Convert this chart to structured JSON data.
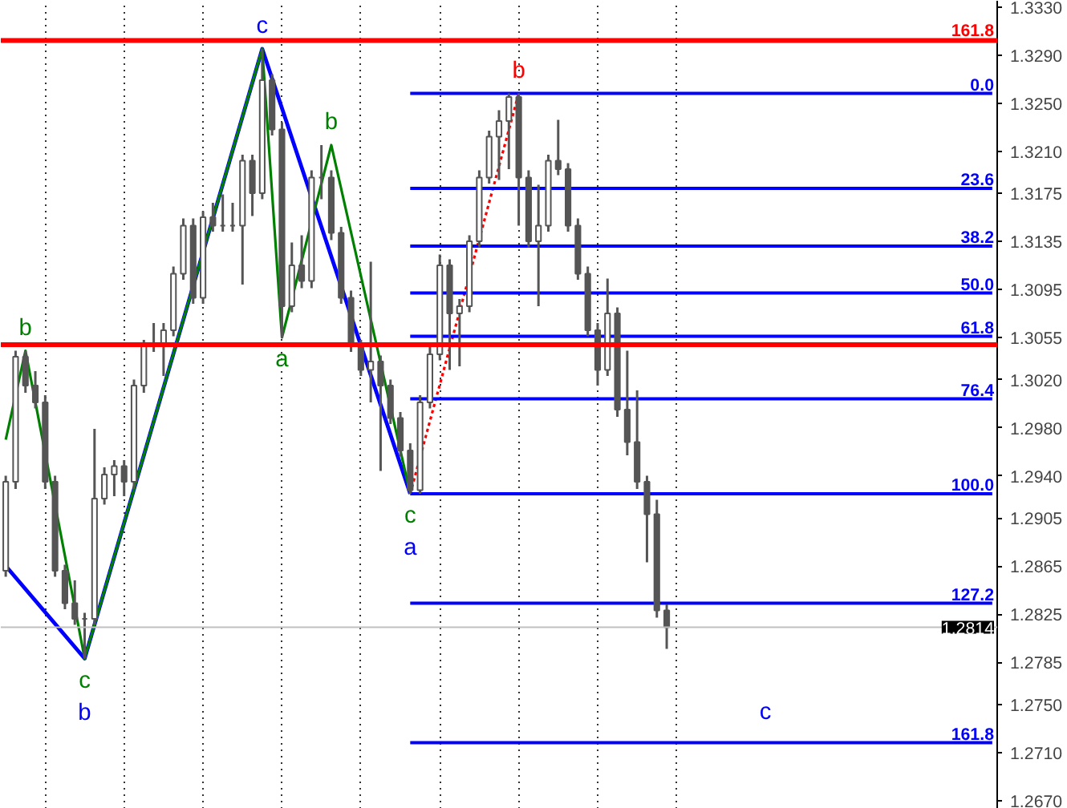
{
  "chart_data": {
    "type": "candlestick",
    "color": "#555555",
    "categories": [
      null,
      null,
      null,
      null,
      null,
      null,
      null,
      null,
      null,
      null,
      null,
      null,
      null,
      null,
      null,
      null,
      null,
      null,
      null,
      null,
      null,
      null,
      null,
      null,
      null,
      null,
      null,
      null,
      null,
      null,
      null,
      null,
      null,
      null,
      null,
      null,
      null,
      null,
      null,
      null,
      null,
      null,
      null,
      null,
      null,
      null,
      null,
      null,
      null,
      null,
      null,
      null,
      null,
      null,
      null,
      null,
      null,
      null,
      null,
      null,
      null,
      null,
      null,
      null,
      null,
      null,
      null,
      null,
      null,
      null,
      null,
      null,
      null,
      null,
      null,
      null,
      null,
      null,
      null,
      null,
      null,
      null,
      null,
      null,
      null,
      null,
      null,
      null,
      null,
      null,
      null,
      null,
      null,
      null,
      null,
      null,
      null,
      null,
      null,
      null,
      null
    ],
    "ohlc": [
      [
        1.2861,
        1.294,
        1.2856,
        1.2935
      ],
      [
        1.2935,
        1.3044,
        1.2929,
        1.3039
      ],
      [
        1.3039,
        1.3044,
        1.3009,
        1.3015
      ],
      [
        1.3015,
        1.3027,
        1.2996,
        1.3001
      ],
      [
        1.3001,
        1.3007,
        1.2929,
        1.2935
      ],
      [
        1.2935,
        1.294,
        1.2856,
        1.2861
      ],
      [
        1.2861,
        1.2866,
        1.2829,
        1.2834
      ],
      [
        1.2834,
        1.2853,
        1.2816,
        1.2821
      ],
      [
        1.2821,
        1.2826,
        1.2788,
        1.2821
      ],
      [
        1.2821,
        1.2979,
        1.2816,
        1.2921
      ],
      [
        1.2921,
        1.2947,
        1.2916,
        1.2941
      ],
      [
        1.2941,
        1.2953,
        1.2923,
        1.2948
      ],
      [
        1.2948,
        1.2953,
        1.2923,
        1.2935
      ],
      [
        1.2935,
        1.302,
        1.2929,
        1.3015
      ],
      [
        1.3015,
        1.3053,
        1.3009,
        1.3048
      ],
      [
        1.3048,
        1.3067,
        1.3043,
        1.3048
      ],
      [
        1.3048,
        1.3067,
        1.3023,
        1.3061
      ],
      [
        1.3061,
        1.3114,
        1.3056,
        1.3108
      ],
      [
        1.3108,
        1.3154,
        1.3103,
        1.3148
      ],
      [
        1.3148,
        1.3154,
        1.3083,
        1.3088
      ],
      [
        1.3088,
        1.316,
        1.3083,
        1.3155
      ],
      [
        1.3155,
        1.3167,
        1.3143,
        1.3148
      ],
      [
        1.3148,
        1.3174,
        1.3143,
        1.3148
      ],
      [
        1.3148,
        1.3167,
        1.3143,
        1.3148
      ],
      [
        1.3148,
        1.3207,
        1.3099,
        1.3202
      ],
      [
        1.3202,
        1.3207,
        1.3156,
        1.3175
      ],
      [
        1.3175,
        1.3295,
        1.317,
        1.3269
      ],
      [
        1.3269,
        1.3274,
        1.3223,
        1.3228
      ],
      [
        1.3228,
        1.3234,
        1.3055,
        1.3081
      ],
      [
        1.3081,
        1.3134,
        1.3076,
        1.3115
      ],
      [
        1.3115,
        1.314,
        1.3096,
        1.3102
      ],
      [
        1.3102,
        1.3194,
        1.3096,
        1.3188
      ],
      [
        1.3188,
        1.3215,
        1.317,
        1.3188
      ],
      [
        1.3188,
        1.3194,
        1.3136,
        1.3142
      ],
      [
        1.3142,
        1.3147,
        1.3083,
        1.3088
      ],
      [
        1.3088,
        1.3094,
        1.3043,
        1.3048
      ],
      [
        1.3048,
        1.3053,
        1.3023,
        1.3028
      ],
      [
        1.3028,
        1.3118,
        1.3001,
        1.3035
      ],
      [
        1.3035,
        1.304,
        1.2944,
        1.3015
      ],
      [
        1.3015,
        1.302,
        1.2983,
        1.2988
      ],
      [
        1.2988,
        1.2993,
        1.2956,
        1.2961
      ],
      [
        1.2961,
        1.2967,
        1.2925,
        1.2928
      ],
      [
        1.2928,
        1.3007,
        1.2925,
        1.3001
      ],
      [
        1.3001,
        1.3047,
        1.2996,
        1.3041
      ],
      [
        1.3041,
        1.3124,
        1.3036,
        1.3115
      ],
      [
        1.3115,
        1.312,
        1.3028,
        1.3075
      ],
      [
        1.3075,
        1.3087,
        1.3031,
        1.3081
      ],
      [
        1.3081,
        1.314,
        1.3076,
        1.3135
      ],
      [
        1.3135,
        1.3194,
        1.313,
        1.3188
      ],
      [
        1.3188,
        1.3227,
        1.3183,
        1.3222
      ],
      [
        1.3222,
        1.3244,
        1.3186,
        1.3235
      ],
      [
        1.3235,
        1.3258,
        1.3195,
        1.3255
      ],
      [
        1.3255,
        1.3258,
        1.3148,
        1.3188
      ],
      [
        1.3188,
        1.3194,
        1.313,
        1.3135
      ],
      [
        1.3135,
        1.3182,
        1.3081,
        1.3148
      ],
      [
        1.3148,
        1.3207,
        1.3143,
        1.3202
      ],
      [
        1.3202,
        1.3236,
        1.319,
        1.3195
      ],
      [
        1.3195,
        1.32,
        1.3143,
        1.3148
      ],
      [
        1.3148,
        1.3154,
        1.3103,
        1.3108
      ],
      [
        1.3108,
        1.3114,
        1.3056,
        1.3061
      ],
      [
        1.3061,
        1.3067,
        1.3015,
        1.3028
      ],
      [
        1.3028,
        1.3104,
        1.3023,
        1.3075
      ],
      [
        1.3075,
        1.308,
        1.2989,
        1.2995
      ],
      [
        1.2995,
        1.3044,
        1.2957,
        1.2968
      ],
      [
        1.2968,
        1.3011,
        1.2929,
        1.2935
      ],
      [
        1.2935,
        1.294,
        1.2868,
        1.2908
      ],
      [
        1.2908,
        1.292,
        1.2822,
        1.2828
      ],
      [
        1.2828,
        1.2833,
        1.2796,
        1.2814
      ],
      null,
      null,
      null,
      null,
      null,
      null,
      null,
      null,
      null,
      null,
      null,
      null,
      null,
      null,
      null,
      null,
      null,
      null,
      null,
      null,
      null,
      null,
      null,
      null,
      null,
      null,
      null,
      null,
      null,
      null,
      null,
      null,
      null
    ],
    "ylim": [
      1.2663,
      1.3335
    ],
    "yticks": [
      {
        "value": 1.333,
        "label": "1.3330"
      },
      {
        "value": 1.329,
        "label": "1.3290"
      },
      {
        "value": 1.325,
        "label": "1.3250"
      },
      {
        "value": 1.321,
        "label": "1.3210"
      },
      1.3175,
      1.3135,
      1.3095,
      1.3055,
      {
        "value": 1.302,
        "label": "1.3020"
      },
      {
        "value": 1.298,
        "label": "1.2980"
      },
      {
        "value": 1.294,
        "label": "1.2940"
      },
      1.2905,
      1.2865,
      1.2825,
      1.2785,
      {
        "value": 1.275,
        "label": "1.2750"
      },
      {
        "value": 1.271,
        "label": "1.2710"
      },
      {
        "value": 1.267,
        "label": "1.2670"
      }
    ],
    "grid": "x",
    "tick_labels": "y",
    "legend": "right",
    "series": [
      {
        "type": "line",
        "color": "#0000ff",
        "values": [
          1.2865,
          null,
          null,
          null,
          null,
          null,
          null,
          null,
          1.2788,
          null,
          null,
          null,
          null,
          null,
          null,
          null,
          null,
          null,
          null,
          null,
          null,
          null,
          null,
          null,
          null,
          null,
          1.3295,
          null,
          null,
          null,
          null,
          null,
          null,
          null,
          null,
          null,
          null,
          null,
          null,
          null,
          null,
          1.2925,
          null,
          null,
          null,
          null,
          null,
          null,
          null,
          null,
          null,
          null,
          null,
          null,
          null,
          null,
          null,
          null,
          null,
          null,
          null,
          null,
          null,
          null,
          null,
          null,
          null,
          null,
          null,
          null,
          null,
          null,
          null,
          null,
          null,
          null,
          null,
          null,
          null,
          null,
          null,
          null,
          null,
          null,
          null,
          null,
          null,
          null,
          null,
          null,
          null,
          null,
          null,
          null,
          null,
          null,
          null,
          null,
          null,
          null,
          null
        ],
        "value_labels": [
          null,
          null,
          null,
          null,
          null,
          null,
          null,
          null,
          "b",
          null,
          null,
          null,
          null,
          null,
          null,
          null,
          null,
          null,
          null,
          null,
          null,
          null,
          null,
          null,
          null,
          null,
          "c",
          null,
          null,
          null,
          null,
          null,
          null,
          null,
          null,
          null,
          null,
          null,
          null,
          null,
          null,
          "a",
          null,
          null,
          null,
          null,
          null,
          null,
          null,
          null,
          null,
          null,
          null,
          null,
          null,
          null,
          null,
          null,
          null,
          null,
          null,
          null,
          null,
          null,
          null,
          null,
          null,
          null,
          null,
          null,
          null,
          null,
          null,
          null,
          null,
          null,
          null,
          null,
          null,
          null,
          null,
          null,
          null,
          null,
          null,
          null,
          null,
          null,
          null,
          null,
          null,
          null,
          null,
          null,
          null,
          null,
          null,
          null,
          null,
          null,
          null
        ]
      },
      {
        "type": "line",
        "color": "#008000",
        "values": [
          1.297,
          null,
          1.3044,
          null,
          null,
          null,
          null,
          null,
          1.2788,
          null,
          null,
          null,
          null,
          null,
          null,
          null,
          null,
          null,
          null,
          null,
          null,
          null,
          null,
          null,
          null,
          null,
          1.3295,
          null,
          1.3055,
          null,
          null,
          null,
          null,
          1.3215,
          null,
          null,
          null,
          null,
          null,
          null,
          null,
          1.2925,
          null,
          null,
          null,
          null,
          null,
          null,
          null,
          null,
          null,
          null,
          null,
          null,
          null,
          null,
          null,
          null,
          null,
          null,
          null,
          null,
          null,
          null,
          null,
          null,
          null,
          null,
          null,
          null,
          null,
          null,
          null,
          null,
          null,
          null,
          null,
          null,
          null,
          null,
          null,
          null,
          null,
          null,
          null,
          null,
          null,
          null,
          null,
          null,
          null,
          null,
          null,
          null,
          null,
          null,
          null,
          null,
          null,
          null,
          null
        ],
        "value_labels": [
          null,
          null,
          "b",
          null,
          null,
          null,
          null,
          null,
          "c",
          null,
          null,
          null,
          null,
          null,
          null,
          null,
          null,
          null,
          null,
          null,
          null,
          null,
          null,
          null,
          null,
          null,
          null,
          null,
          "a",
          null,
          null,
          null,
          null,
          "b",
          null,
          null,
          null,
          null,
          null,
          null,
          null,
          "c",
          null,
          null,
          null,
          null,
          null,
          null,
          null,
          null,
          null,
          null,
          null,
          null,
          null,
          null,
          null,
          null,
          null,
          null,
          null,
          null,
          null,
          null,
          null,
          null,
          null,
          null,
          null,
          null,
          null,
          null,
          null,
          null,
          null,
          null,
          null,
          null,
          null,
          null,
          null,
          null,
          null,
          null,
          null,
          null,
          null,
          null,
          null,
          null,
          null,
          null,
          null,
          null,
          null,
          null,
          null,
          null,
          null,
          null,
          null
        ]
      },
      {
        "type": "line",
        "color": "#ff0000",
        "line_style": "dotted",
        "values": [
          null,
          null,
          null,
          null,
          null,
          null,
          null,
          null,
          null,
          null,
          null,
          null,
          null,
          null,
          null,
          null,
          null,
          null,
          null,
          null,
          null,
          null,
          null,
          null,
          null,
          null,
          null,
          null,
          null,
          null,
          null,
          null,
          null,
          null,
          null,
          null,
          null,
          null,
          null,
          null,
          null,
          1.2925,
          null,
          null,
          null,
          null,
          null,
          null,
          null,
          null,
          null,
          null,
          1.3258,
          null,
          null,
          null,
          null,
          null,
          null,
          null,
          null,
          null,
          null,
          null,
          null,
          null,
          null,
          null,
          null,
          null,
          null,
          null,
          null,
          null,
          null,
          null,
          null,
          null,
          null,
          null,
          null,
          null,
          null,
          null,
          null,
          null,
          null,
          null,
          null,
          null,
          null,
          null,
          null,
          null,
          null,
          null,
          null,
          null,
          null,
          null,
          null
        ],
        "value_labels": [
          null,
          null,
          null,
          null,
          null,
          null,
          null,
          null,
          null,
          null,
          null,
          null,
          null,
          null,
          null,
          null,
          null,
          null,
          null,
          null,
          null,
          null,
          null,
          null,
          null,
          null,
          null,
          null,
          null,
          null,
          null,
          null,
          null,
          null,
          null,
          null,
          null,
          null,
          null,
          null,
          null,
          null,
          null,
          null,
          null,
          null,
          null,
          null,
          null,
          null,
          null,
          null,
          "b",
          null,
          null,
          null,
          null,
          null,
          null,
          null,
          null,
          null,
          null,
          null,
          null,
          null,
          null,
          null,
          null,
          null,
          null,
          null,
          null,
          null,
          null,
          null,
          null,
          null,
          null,
          null,
          null,
          null,
          null,
          null,
          null,
          null,
          null,
          null,
          null,
          null,
          null,
          null,
          null,
          null,
          null,
          null,
          null,
          null,
          null,
          null,
          null
        ]
      },
      {
        "type": "line",
        "name": "0.0",
        "color": "#0000ff",
        "values": [
          null,
          null,
          null,
          null,
          null,
          null,
          null,
          null,
          null,
          null,
          null,
          null,
          null,
          null,
          null,
          null,
          null,
          null,
          null,
          null,
          null,
          null,
          null,
          null,
          null,
          null,
          null,
          null,
          null,
          null,
          null,
          null,
          null,
          null,
          null,
          null,
          null,
          null,
          null,
          null,
          null,
          1.3258,
          null,
          null,
          null,
          null,
          null,
          null,
          null,
          null,
          null,
          null,
          null,
          null,
          null,
          null,
          null,
          null,
          null,
          null,
          null,
          null,
          null,
          null,
          null,
          null,
          null,
          null,
          null,
          null,
          null,
          null,
          null,
          null,
          null,
          null,
          null,
          null,
          null,
          null,
          null,
          null,
          null,
          null,
          null,
          null,
          null,
          null,
          null,
          null,
          null,
          null,
          null,
          null,
          null,
          null,
          null,
          null,
          null,
          null,
          1.3258
        ]
      },
      {
        "type": "line",
        "name": "23.6",
        "color": "#0000ff",
        "values": [
          null,
          null,
          null,
          null,
          null,
          null,
          null,
          null,
          null,
          null,
          null,
          null,
          null,
          null,
          null,
          null,
          null,
          null,
          null,
          null,
          null,
          null,
          null,
          null,
          null,
          null,
          null,
          null,
          null,
          null,
          null,
          null,
          null,
          null,
          null,
          null,
          null,
          null,
          null,
          null,
          null,
          1.3179,
          null,
          null,
          null,
          null,
          null,
          null,
          null,
          null,
          null,
          null,
          null,
          null,
          null,
          null,
          null,
          null,
          null,
          null,
          null,
          null,
          null,
          null,
          null,
          null,
          null,
          null,
          null,
          null,
          null,
          null,
          null,
          null,
          null,
          null,
          null,
          null,
          null,
          null,
          null,
          null,
          null,
          null,
          null,
          null,
          null,
          null,
          null,
          null,
          null,
          null,
          null,
          null,
          null,
          null,
          null,
          null,
          null,
          null,
          1.3179
        ]
      },
      {
        "type": "line",
        "name": "38.2",
        "color": "#0000ff",
        "values": [
          null,
          null,
          null,
          null,
          null,
          null,
          null,
          null,
          null,
          null,
          null,
          null,
          null,
          null,
          null,
          null,
          null,
          null,
          null,
          null,
          null,
          null,
          null,
          null,
          null,
          null,
          null,
          null,
          null,
          null,
          null,
          null,
          null,
          null,
          null,
          null,
          null,
          null,
          null,
          null,
          null,
          1.3131,
          null,
          null,
          null,
          null,
          null,
          null,
          null,
          null,
          null,
          null,
          null,
          null,
          null,
          null,
          null,
          null,
          null,
          null,
          null,
          null,
          null,
          null,
          null,
          null,
          null,
          null,
          null,
          null,
          null,
          null,
          null,
          null,
          null,
          null,
          null,
          null,
          null,
          null,
          null,
          null,
          null,
          null,
          null,
          null,
          null,
          null,
          null,
          null,
          null,
          null,
          null,
          null,
          null,
          null,
          null,
          null,
          null,
          null,
          1.3131
        ]
      },
      {
        "type": "line",
        "name": "50.0",
        "color": "#0000ff",
        "values": [
          null,
          null,
          null,
          null,
          null,
          null,
          null,
          null,
          null,
          null,
          null,
          null,
          null,
          null,
          null,
          null,
          null,
          null,
          null,
          null,
          null,
          null,
          null,
          null,
          null,
          null,
          null,
          null,
          null,
          null,
          null,
          null,
          null,
          null,
          null,
          null,
          null,
          null,
          null,
          null,
          null,
          1.3092,
          null,
          null,
          null,
          null,
          null,
          null,
          null,
          null,
          null,
          null,
          null,
          null,
          null,
          null,
          null,
          null,
          null,
          null,
          null,
          null,
          null,
          null,
          null,
          null,
          null,
          null,
          null,
          null,
          null,
          null,
          null,
          null,
          null,
          null,
          null,
          null,
          null,
          null,
          null,
          null,
          null,
          null,
          null,
          null,
          null,
          null,
          null,
          null,
          null,
          null,
          null,
          null,
          null,
          null,
          null,
          null,
          null,
          null,
          1.3092
        ]
      },
      {
        "type": "line",
        "name": "61.8",
        "color": "#0000ff",
        "values": [
          null,
          null,
          null,
          null,
          null,
          null,
          null,
          null,
          null,
          null,
          null,
          null,
          null,
          null,
          null,
          null,
          null,
          null,
          null,
          null,
          null,
          null,
          null,
          null,
          null,
          null,
          null,
          null,
          null,
          null,
          null,
          null,
          null,
          null,
          null,
          null,
          null,
          null,
          null,
          null,
          null,
          1.3056,
          null,
          null,
          null,
          null,
          null,
          null,
          null,
          null,
          null,
          null,
          null,
          null,
          null,
          null,
          null,
          null,
          null,
          null,
          null,
          null,
          null,
          null,
          null,
          null,
          null,
          null,
          null,
          null,
          null,
          null,
          null,
          null,
          null,
          null,
          null,
          null,
          null,
          null,
          null,
          null,
          null,
          null,
          null,
          null,
          null,
          null,
          null,
          null,
          null,
          null,
          null,
          null,
          null,
          null,
          null,
          null,
          null,
          null,
          1.3056
        ]
      },
      {
        "type": "line",
        "name": "76.4",
        "color": "#0000ff",
        "values": [
          null,
          null,
          null,
          null,
          null,
          null,
          null,
          null,
          null,
          null,
          null,
          null,
          null,
          null,
          null,
          null,
          null,
          null,
          null,
          null,
          null,
          null,
          null,
          null,
          null,
          null,
          null,
          null,
          null,
          null,
          null,
          null,
          null,
          null,
          null,
          null,
          null,
          null,
          null,
          null,
          null,
          1.3004,
          null,
          null,
          null,
          null,
          null,
          null,
          null,
          null,
          null,
          null,
          null,
          null,
          null,
          null,
          null,
          null,
          null,
          null,
          null,
          null,
          null,
          null,
          null,
          null,
          null,
          null,
          null,
          null,
          null,
          null,
          null,
          null,
          null,
          null,
          null,
          null,
          null,
          null,
          null,
          null,
          null,
          null,
          null,
          null,
          null,
          null,
          null,
          null,
          null,
          null,
          null,
          null,
          null,
          null,
          null,
          null,
          null,
          null,
          1.3004
        ]
      },
      {
        "type": "line",
        "name": "100.0",
        "color": "#0000ff",
        "values": [
          null,
          null,
          null,
          null,
          null,
          null,
          null,
          null,
          null,
          null,
          null,
          null,
          null,
          null,
          null,
          null,
          null,
          null,
          null,
          null,
          null,
          null,
          null,
          null,
          null,
          null,
          null,
          null,
          null,
          null,
          null,
          null,
          null,
          null,
          null,
          null,
          null,
          null,
          null,
          null,
          null,
          1.2925,
          null,
          null,
          null,
          null,
          null,
          null,
          null,
          null,
          null,
          null,
          null,
          null,
          null,
          null,
          null,
          null,
          null,
          null,
          null,
          null,
          null,
          null,
          null,
          null,
          null,
          null,
          null,
          null,
          null,
          null,
          null,
          null,
          null,
          null,
          null,
          null,
          null,
          null,
          null,
          null,
          null,
          null,
          null,
          null,
          null,
          null,
          null,
          null,
          null,
          null,
          null,
          null,
          null,
          null,
          null,
          null,
          null,
          null,
          1.2925
        ]
      },
      {
        "type": "line",
        "name": "127.2",
        "color": "#0000ff",
        "values": [
          null,
          null,
          null,
          null,
          null,
          null,
          null,
          null,
          null,
          null,
          null,
          null,
          null,
          null,
          null,
          null,
          null,
          null,
          null,
          null,
          null,
          null,
          null,
          null,
          null,
          null,
          null,
          null,
          null,
          null,
          null,
          null,
          null,
          null,
          null,
          null,
          null,
          null,
          null,
          null,
          null,
          1.2834,
          null,
          null,
          null,
          null,
          null,
          null,
          null,
          null,
          null,
          null,
          null,
          null,
          null,
          null,
          null,
          null,
          null,
          null,
          null,
          null,
          null,
          null,
          null,
          null,
          null,
          null,
          null,
          null,
          null,
          null,
          null,
          null,
          null,
          null,
          null,
          null,
          null,
          null,
          null,
          null,
          null,
          null,
          null,
          null,
          null,
          null,
          null,
          null,
          null,
          null,
          null,
          null,
          null,
          null,
          null,
          null,
          null,
          null,
          1.2834
        ]
      },
      {
        "type": "line",
        "name": "161.8",
        "color": "#0000ff",
        "values": [
          null,
          null,
          null,
          null,
          null,
          null,
          null,
          null,
          null,
          null,
          null,
          null,
          null,
          null,
          null,
          null,
          null,
          null,
          null,
          null,
          null,
          null,
          null,
          null,
          null,
          null,
          null,
          null,
          null,
          null,
          null,
          null,
          null,
          null,
          null,
          null,
          null,
          null,
          null,
          null,
          null,
          1.2718,
          null,
          null,
          null,
          null,
          null,
          null,
          null,
          null,
          null,
          null,
          null,
          null,
          null,
          null,
          null,
          null,
          null,
          null,
          null,
          null,
          null,
          null,
          null,
          null,
          null,
          null,
          null,
          null,
          null,
          null,
          null,
          null,
          null,
          null,
          null,
          null,
          null,
          null,
          null,
          null,
          null,
          null,
          null,
          null,
          null,
          null,
          null,
          null,
          null,
          null,
          null,
          null,
          null,
          null,
          null,
          null,
          null,
          null,
          1.2718
        ]
      }
    ],
    "ref_lines": [
      {
        "axis": "y",
        "value": 1.3302,
        "color": "#ff0000"
      },
      {
        "axis": "y",
        "value": 1.3049,
        "color": "#ff0000"
      },
      {
        "axis": "y",
        "value": 1.2814,
        "label": "1.2814",
        "color": "#c0c0c0"
      }
    ],
    "annotations": [
      {
        "text": "161.8",
        "y": 1.3302
      },
      "c"
    ]
  }
}
